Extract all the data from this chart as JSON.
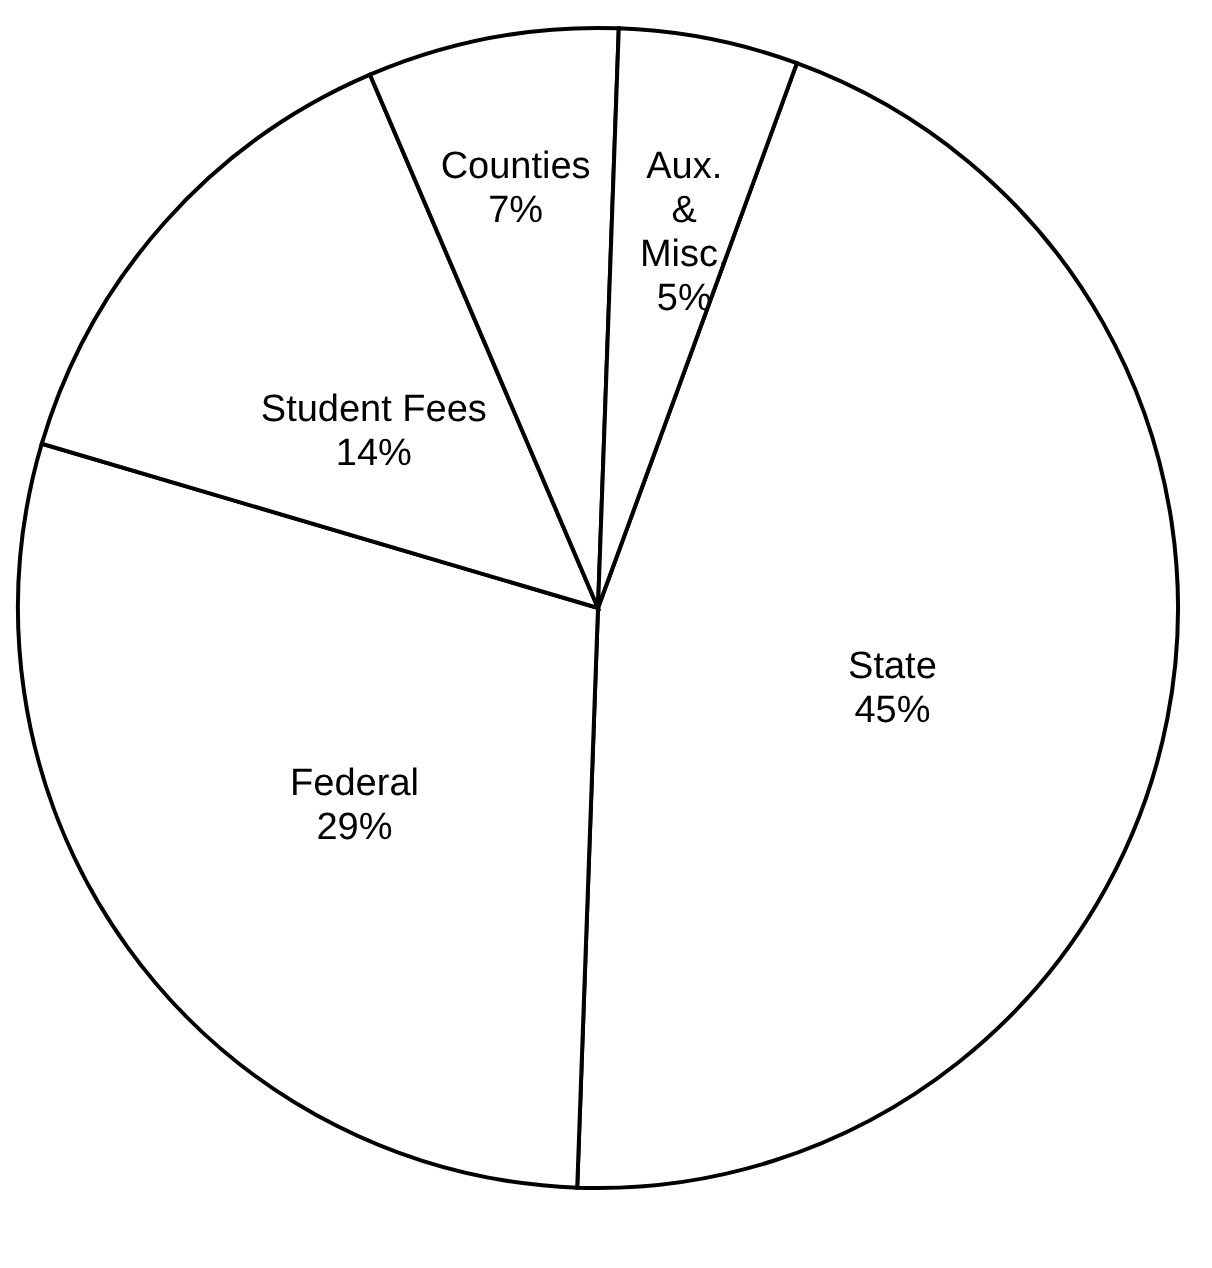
{
  "chart_data": {
    "type": "pie",
    "categories": [
      "State",
      "Federal",
      "Student Fees",
      "Counties",
      "Aux. & Misc."
    ],
    "values": [
      45,
      29,
      14,
      7,
      5
    ],
    "colors": [
      "#ffffff",
      "#ffffff",
      "#ffffff",
      "#ffffff",
      "#ffffff"
    ],
    "value_labels": [
      "45%",
      "29%",
      "14%",
      "7%",
      "5%"
    ],
    "legend": false
  }
}
